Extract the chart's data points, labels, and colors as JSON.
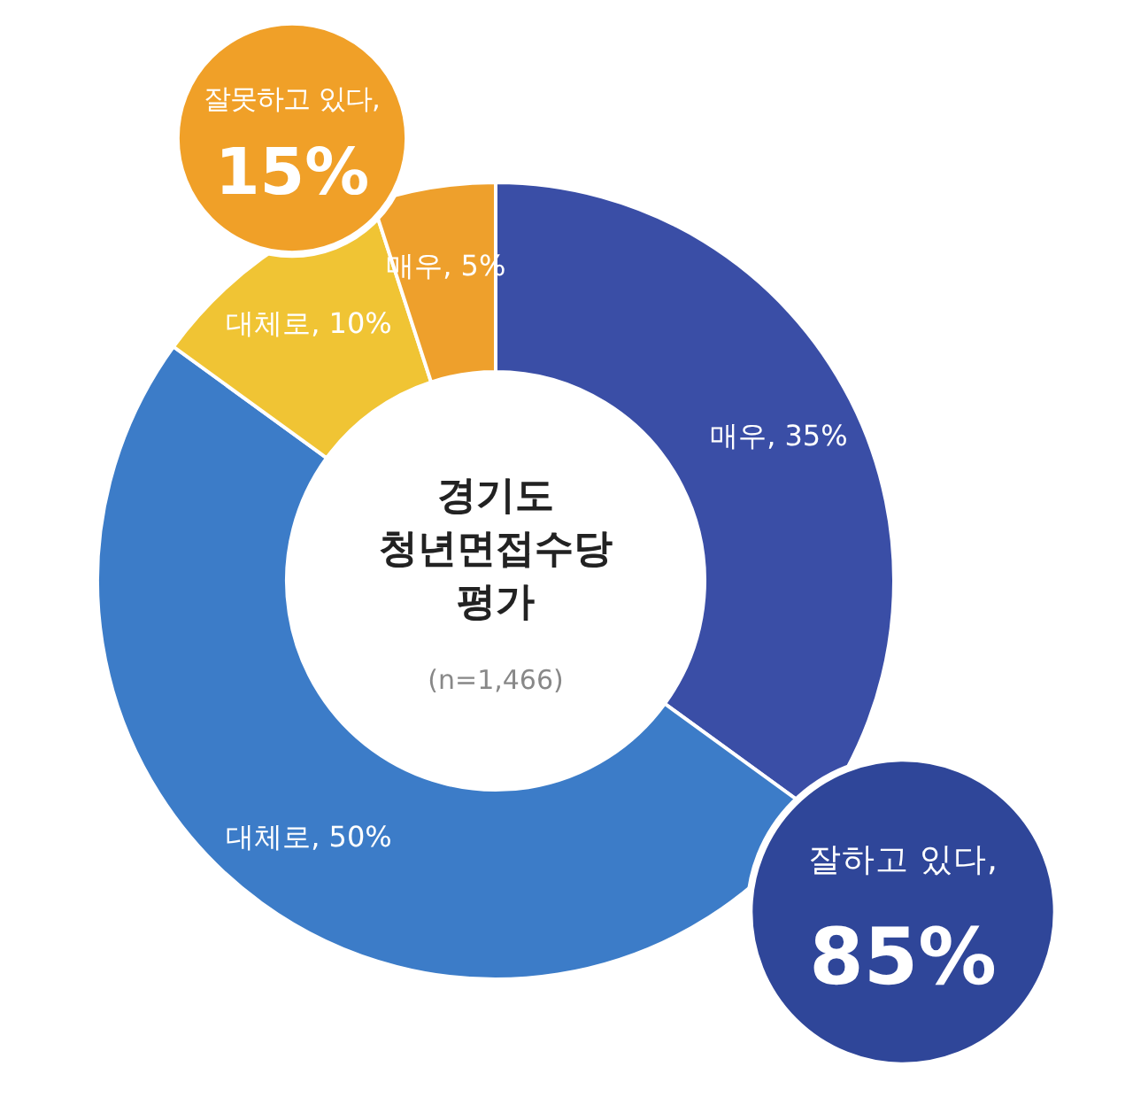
{
  "chart_data": {
    "type": "donut",
    "title": "경기도 청년면접수당 평가",
    "subtitle": "(n=1,466)",
    "categories": [
      "매우",
      "대체로",
      "대체로",
      "매우"
    ],
    "values": [
      35,
      50,
      10,
      5
    ],
    "value_labels": [
      "35%",
      "50%",
      "10%",
      "5%"
    ],
    "colors": [
      "#3a4ea6",
      "#3c7cc8",
      "#f0c434",
      "#eea02c"
    ],
    "annotations": [
      "잘하고 있다, 85%",
      "잘못하고 있다, 15%"
    ]
  }
}
